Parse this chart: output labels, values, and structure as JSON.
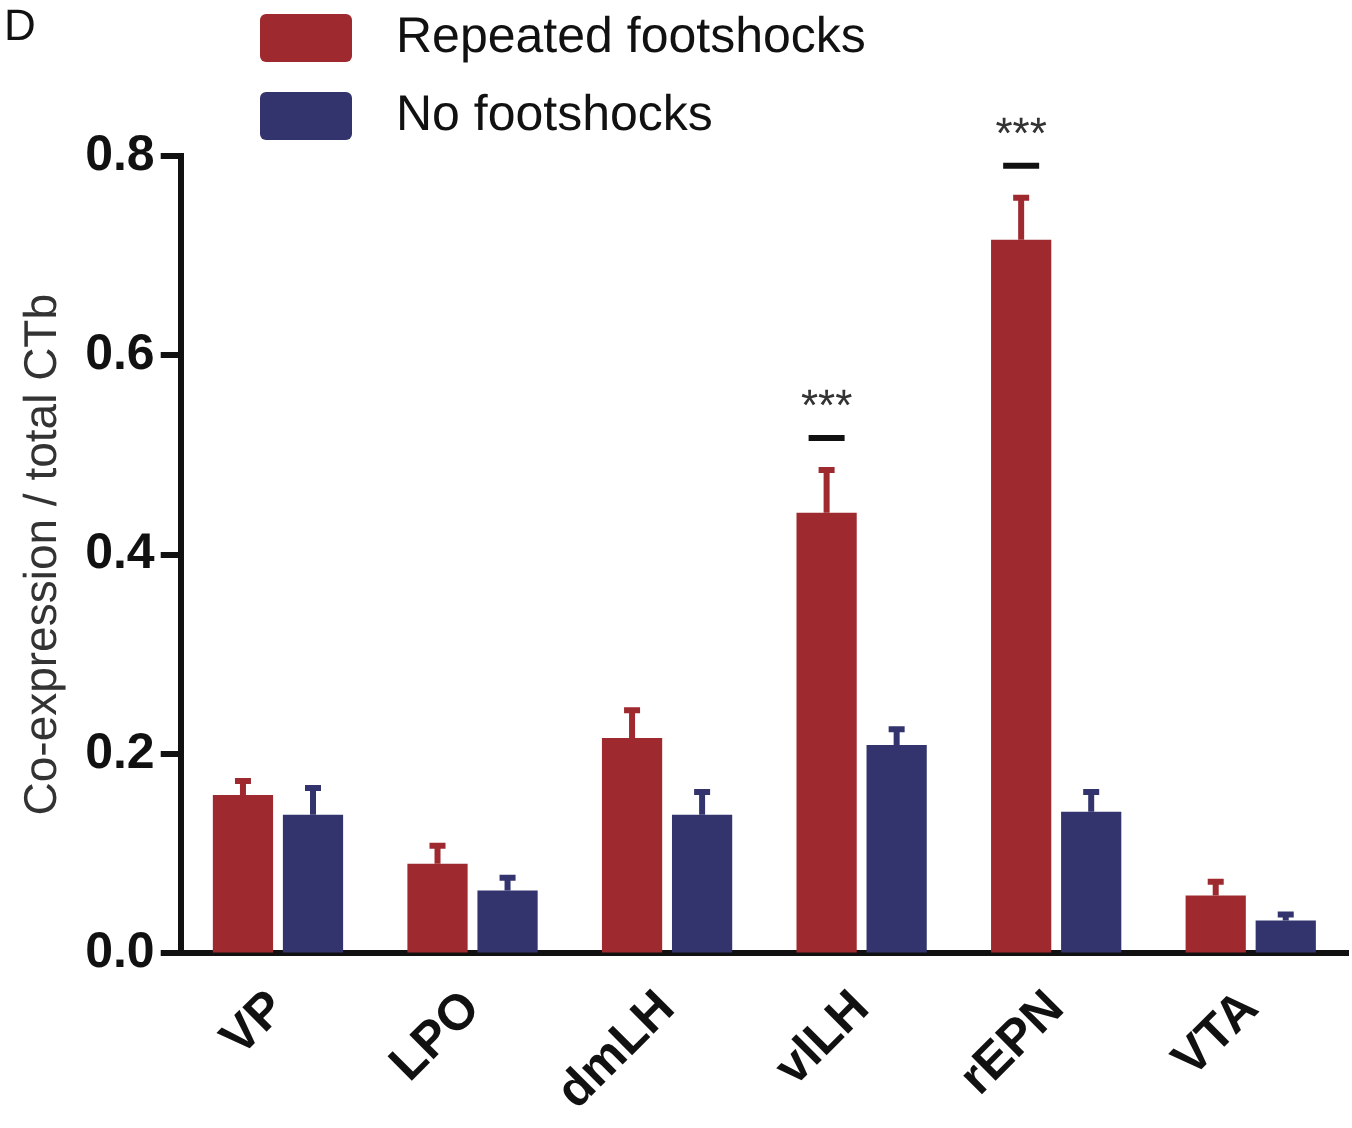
{
  "chart_data": {
    "type": "bar",
    "ylabel": "Co-expression / total CTb",
    "categories": [
      "VP",
      "LPO",
      "dmLH",
      "vlLH",
      "rEPN",
      "VTA"
    ],
    "series": [
      {
        "name": "Repeated footshocks",
        "color": "#9e2a2f",
        "values": [
          0.159,
          0.09,
          0.216,
          0.442,
          0.716,
          0.058
        ],
        "errors": [
          [
            0.159,
            0.173
          ],
          [
            0.09,
            0.108
          ],
          [
            0.216,
            0.244
          ],
          [
            0.442,
            0.485
          ],
          [
            0.716,
            0.758
          ],
          [
            0.058,
            0.072
          ]
        ]
      },
      {
        "name": "No footshocks",
        "color": "#33346e",
        "values": [
          0.139,
          0.063,
          0.139,
          0.209,
          0.142,
          0.033
        ],
        "errors": [
          [
            0.139,
            0.166
          ],
          [
            0.063,
            0.076
          ],
          [
            0.139,
            0.162
          ],
          [
            0.209,
            0.225
          ],
          [
            0.142,
            0.162
          ],
          [
            0.033,
            0.039
          ]
        ]
      }
    ],
    "ylim": [
      0,
      0.8
    ],
    "yticks": [
      {
        "value": 0,
        "label": "0.0"
      },
      0.2,
      0.4,
      0.6,
      0.8
    ],
    "grid": false,
    "legend": "top left",
    "annotations": [
      "D",
      "***",
      "***"
    ]
  }
}
